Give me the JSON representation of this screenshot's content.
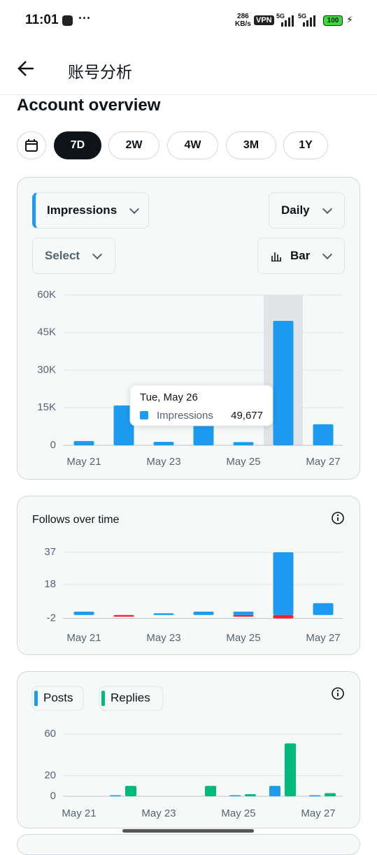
{
  "status_bar": {
    "time": "11:01",
    "speed": "286",
    "speed_unit": "KB/s",
    "vpn": "VPN",
    "network_1": "5G",
    "network_2": "5G",
    "battery": "100"
  },
  "header": {
    "title": "账号分析"
  },
  "section_title": "Account overview",
  "periods": [
    "7D",
    "2W",
    "4W",
    "3M",
    "1Y"
  ],
  "selected_period_index": 0,
  "controls": {
    "metric": "Impressions",
    "interval": "Daily",
    "select": "Select",
    "chart_style": "Bar"
  },
  "chart_data": [
    {
      "type": "bar",
      "categories": [
        "May 21",
        null,
        "May 23",
        null,
        "May 25",
        null,
        "May 27"
      ],
      "values": [
        1700,
        15900,
        1400,
        9000,
        1300,
        49677,
        8400
      ],
      "color": "#1d9bf0",
      "ylim": [
        0,
        60000
      ],
      "yticks": [
        0,
        {
          "value": 15000,
          "label": "15K"
        },
        {
          "value": 30000,
          "label": "30K"
        },
        {
          "value": 45000,
          "label": "45K"
        },
        {
          "value": 60000,
          "label": "60K"
        }
      ],
      "grid": true,
      "highlight_index": 5,
      "tooltip": {
        "title": "Tue, May 26",
        "label": "Impressions",
        "value_label": "49,677"
      }
    },
    {
      "type": "bar",
      "title": "Follows over time",
      "categories": [
        "May 21",
        null,
        "May 23",
        null,
        "May 25",
        null,
        "May 27"
      ],
      "series": [
        {
          "color": "#1d9bf0",
          "values": [
            2,
            0,
            1,
            2,
            2,
            37,
            7
          ]
        },
        {
          "color": "#f4212e",
          "values": [
            0,
            -1,
            0,
            0,
            -1,
            -2,
            0
          ]
        }
      ],
      "barmode": "relative",
      "ylim": [
        -3,
        37
      ],
      "yticks": [
        -2,
        18,
        37
      ],
      "grid": true
    },
    {
      "type": "bar",
      "categories": [
        "May 21",
        null,
        "May 23",
        null,
        "May 25",
        null,
        "May 27"
      ],
      "series": [
        {
          "name": "Posts",
          "color": "#1d9bf0",
          "values": [
            0,
            1,
            0,
            0,
            1,
            10,
            1
          ]
        },
        {
          "name": "Replies",
          "color": "#00ba7c",
          "values": [
            0,
            10,
            0,
            10,
            2,
            51,
            3
          ]
        }
      ],
      "barmode": "group",
      "legend": "top-left",
      "ylim": [
        0,
        60
      ],
      "yticks": [
        0,
        20,
        60
      ],
      "grid": true
    }
  ]
}
